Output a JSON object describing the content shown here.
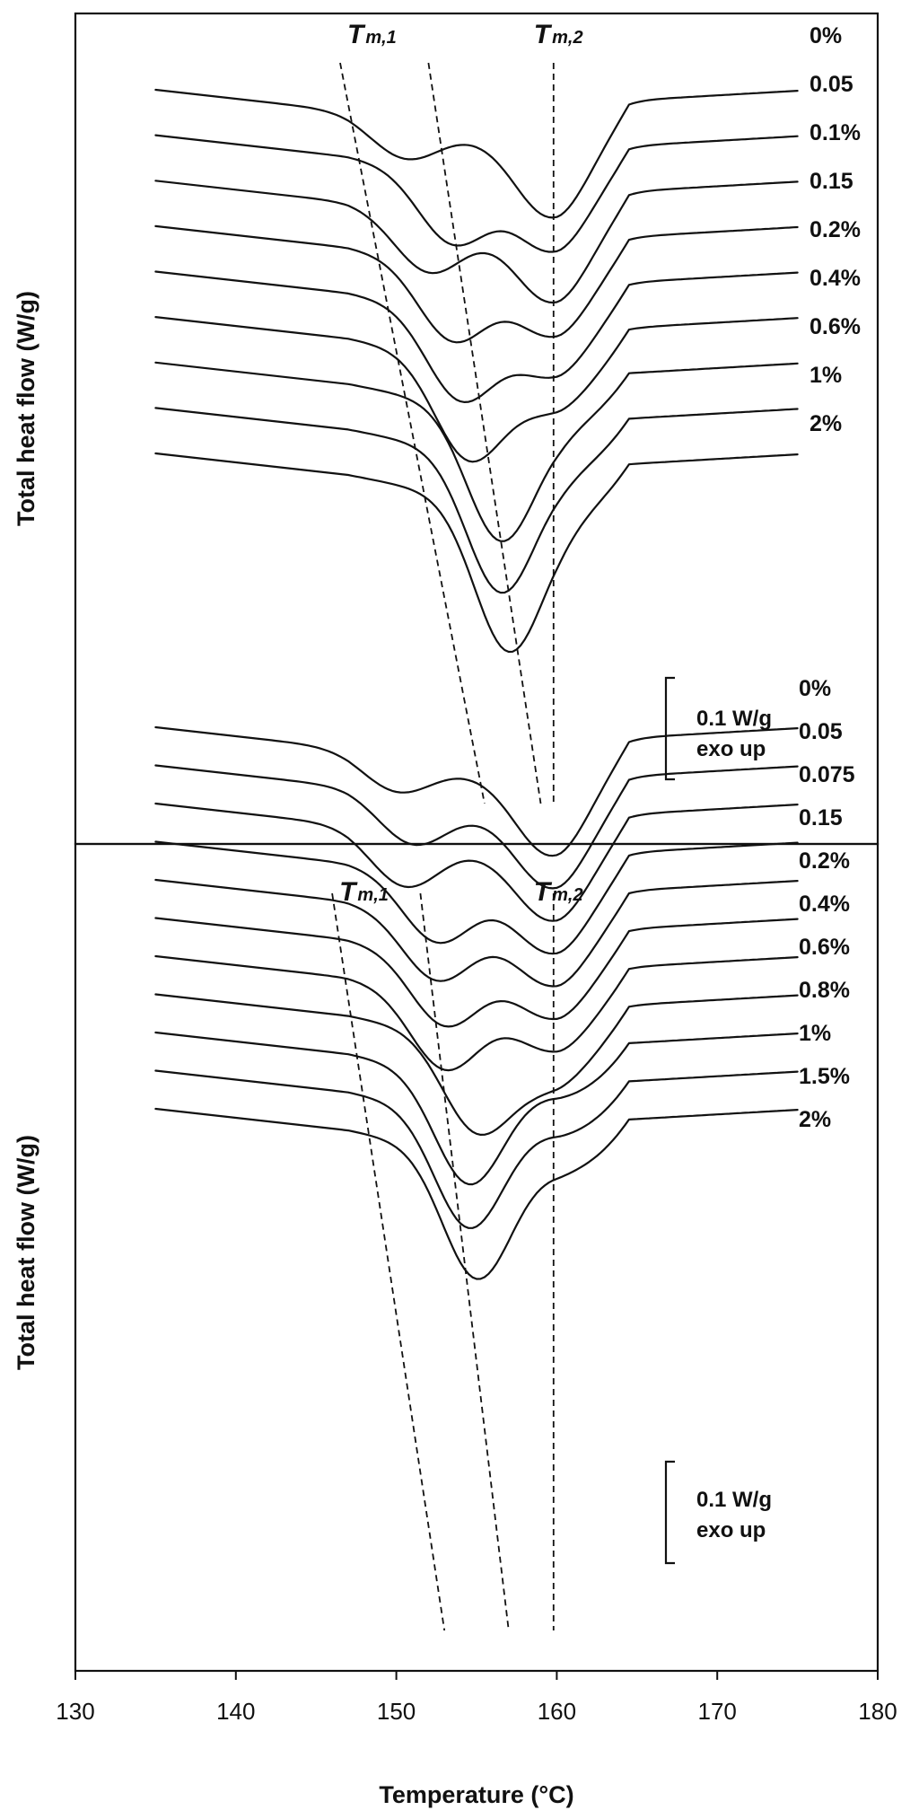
{
  "chart_data": [
    {
      "type": "line",
      "panel": "top",
      "ylabel": "Total heat flow (W/g)",
      "xlim": [
        130,
        180
      ],
      "x_range_of_curves": [
        135,
        175
      ],
      "guide_lines": [
        {
          "label": "T",
          "sub": "m,1",
          "from": [
            146.5,
            "top"
          ],
          "to": [
            155.5,
            "bottom"
          ]
        },
        {
          "label": "",
          "sub": "",
          "from": [
            152.0,
            "top"
          ],
          "to": [
            159.0,
            "bottom"
          ]
        },
        {
          "label": "T",
          "sub": "m,2",
          "from": [
            159.8,
            "top"
          ],
          "to": [
            159.8,
            "bottom"
          ]
        }
      ],
      "scale_bar": {
        "line1": "0.1 W/g",
        "line2": "exo up"
      },
      "series": [
        {
          "name": "0%",
          "dips": [
            [
              150.5,
              0.3
            ],
            [
              159.5,
              0.55
            ]
          ]
        },
        {
          "name": "0.05",
          "dips": [
            [
              153.5,
              0.55
            ],
            [
              159.5,
              0.45
            ]
          ]
        },
        {
          "name": "0.1%",
          "dips": [
            [
              152.0,
              0.45
            ],
            [
              159.5,
              0.5
            ]
          ]
        },
        {
          "name": "0.15",
          "dips": [
            [
              153.5,
              0.6
            ],
            [
              159.5,
              0.4
            ]
          ]
        },
        {
          "name": "0.2%",
          "dips": [
            [
              154.0,
              0.7
            ],
            [
              159.5,
              0.35
            ]
          ]
        },
        {
          "name": "0.4%",
          "dips": [
            [
              154.5,
              0.8
            ],
            [
              159.5,
              0.25
            ]
          ]
        },
        {
          "name": "0.6%",
          "dips": [
            [
              156.5,
              1.05
            ]
          ]
        },
        {
          "name": "1%",
          "dips": [
            [
              156.5,
              1.1
            ]
          ]
        },
        {
          "name": "2%",
          "dips": [
            [
              157.0,
              1.2
            ]
          ]
        }
      ]
    },
    {
      "type": "line",
      "panel": "bottom",
      "ylabel": "Total heat flow (W/g)",
      "xlabel": "Temperature (°C)",
      "xlim": [
        130,
        180
      ],
      "xticks": [
        130,
        140,
        150,
        160,
        170,
        180
      ],
      "x_range_of_curves": [
        135,
        175
      ],
      "guide_lines": [
        {
          "label": "T",
          "sub": "m,1",
          "from": [
            146.0,
            "top"
          ],
          "to": [
            153.0,
            "bottom"
          ]
        },
        {
          "label": "",
          "sub": "",
          "from": [
            151.5,
            "top"
          ],
          "to": [
            157.0,
            "bottom"
          ]
        },
        {
          "label": "T",
          "sub": "m,2",
          "from": [
            159.8,
            "top"
          ],
          "to": [
            159.8,
            "bottom"
          ]
        }
      ],
      "scale_bar": {
        "line1": "0.1 W/g",
        "line2": "exo up"
      },
      "series": [
        {
          "name": "0%",
          "dips": [
            [
              150.0,
              0.3
            ],
            [
              159.5,
              0.6
            ]
          ]
        },
        {
          "name": "0.05",
          "dips": [
            [
              151.0,
              0.4
            ],
            [
              159.5,
              0.55
            ]
          ]
        },
        {
          "name": "0.075",
          "dips": [
            [
              150.5,
              0.45
            ],
            [
              159.5,
              0.5
            ]
          ]
        },
        {
          "name": "0.15",
          "dips": [
            [
              152.5,
              0.55
            ],
            [
              159.5,
              0.45
            ]
          ]
        },
        {
          "name": "0.2%",
          "dips": [
            [
              152.5,
              0.55
            ],
            [
              159.5,
              0.4
            ]
          ]
        },
        {
          "name": "0.4%",
          "dips": [
            [
              153.0,
              0.6
            ],
            [
              159.5,
              0.35
            ]
          ]
        },
        {
          "name": "0.6%",
          "dips": [
            [
              153.0,
              0.65
            ],
            [
              159.5,
              0.3
            ]
          ]
        },
        {
          "name": "0.8%",
          "dips": [
            [
              155.0,
              0.8
            ],
            [
              159.5,
              0.25
            ]
          ]
        },
        {
          "name": "1%",
          "dips": [
            [
              154.5,
              0.95
            ]
          ]
        },
        {
          "name": "1.5%",
          "dips": [
            [
              154.5,
              1.0
            ]
          ]
        },
        {
          "name": "2%",
          "dips": [
            [
              155.0,
              1.1
            ]
          ]
        }
      ]
    }
  ]
}
